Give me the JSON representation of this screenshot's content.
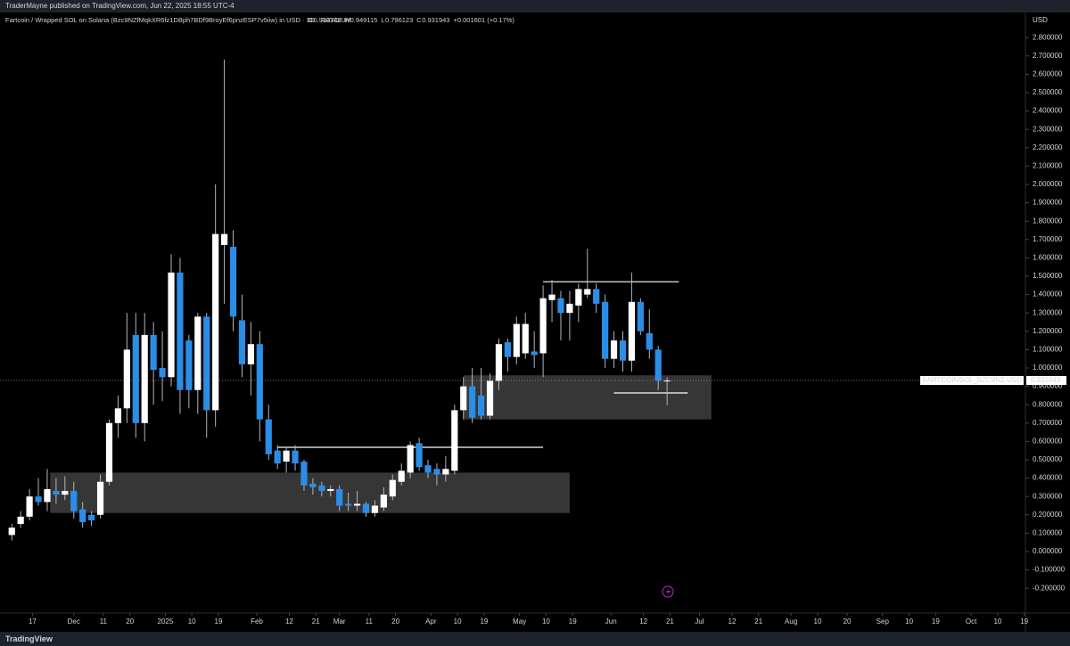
{
  "header": {
    "author_line": "TraderMayne published on TradingView.com, Jun 22, 2025 18:55 UTC-4"
  },
  "chart_data": {
    "type": "candlestick",
    "symbol_line": "Fartcoin / Wrapped SOL on Solana (Bzc9NZfMqkXR6fz1DBph7BDf9BroyEf6pnzESP7v5iiw) in USD · 3D · RAYDIUM",
    "ohlc_legend": [
      {
        "key": "O",
        "value": 0.930342
      },
      {
        "key": "H",
        "value": 0.949115
      },
      {
        "key": "L",
        "value": 0.796123
      },
      {
        "key": "C",
        "value": 0.931943
      }
    ],
    "change": "+0.001601 (+0.17%)",
    "currency": "USD",
    "up_color": "#ffffff",
    "down_color": "#2a8ee6",
    "wick_color": "#b2b5be",
    "x": [
      -21,
      -18,
      -15,
      -12,
      -9,
      -6,
      -3,
      0,
      3,
      6,
      9,
      12,
      15,
      18,
      21,
      24,
      27,
      30,
      33,
      36,
      39,
      42,
      45,
      48,
      51,
      54,
      57,
      60,
      63,
      66,
      69,
      72,
      75,
      78,
      81,
      84,
      87,
      90,
      93,
      96,
      99,
      102,
      105,
      108,
      111,
      114,
      117,
      120,
      123,
      126,
      129,
      132,
      135,
      138,
      141,
      144,
      147,
      150,
      153,
      156,
      159,
      162,
      165,
      168,
      171,
      174,
      177,
      180,
      183,
      186,
      189,
      192,
      195,
      198,
      201
    ],
    "open": [
      0.09,
      0.15,
      0.19,
      0.3,
      0.27,
      0.33,
      0.31,
      0.33,
      0.23,
      0.2,
      0.2,
      0.38,
      0.7,
      0.78,
      1.18,
      0.7,
      1.18,
      1.0,
      0.95,
      1.52,
      1.15,
      0.88,
      1.28,
      0.77,
      1.67,
      1.66,
      1.26,
      1.02,
      1.13,
      0.72,
      0.55,
      0.49,
      0.55,
      0.49,
      0.37,
      0.36,
      0.33,
      0.34,
      0.26,
      0.25,
      0.26,
      0.21,
      0.24,
      0.3,
      0.38,
      0.43,
      0.59,
      0.47,
      0.45,
      0.42,
      0.44,
      0.77,
      0.9,
      0.85,
      0.74,
      0.93,
      1.14,
      1.06,
      1.08,
      1.09,
      1.08,
      1.37,
      1.38,
      1.3,
      1.34,
      1.4,
      1.43,
      1.36,
      1.05,
      1.15,
      1.04,
      1.36,
      1.19,
      1.1,
      0.930342
    ],
    "high": [
      0.15,
      0.22,
      0.34,
      0.4,
      0.45,
      0.4,
      0.41,
      0.38,
      0.27,
      0.22,
      0.42,
      0.72,
      0.85,
      1.3,
      1.3,
      1.3,
      1.25,
      1.2,
      1.62,
      1.6,
      1.18,
      1.3,
      1.3,
      2.0,
      2.68,
      1.75,
      1.4,
      1.25,
      1.2,
      0.8,
      0.58,
      0.57,
      0.58,
      0.5,
      0.4,
      0.38,
      0.36,
      0.36,
      0.32,
      0.33,
      0.27,
      0.28,
      0.35,
      0.42,
      0.48,
      0.6,
      0.62,
      0.5,
      0.48,
      0.52,
      0.8,
      0.95,
      1.0,
      1.0,
      0.97,
      1.16,
      1.16,
      1.28,
      1.3,
      1.2,
      1.45,
      1.48,
      1.42,
      1.42,
      1.46,
      1.65,
      1.46,
      1.4,
      1.2,
      1.2,
      1.52,
      1.38,
      1.32,
      1.12,
      0.949115
    ],
    "low": [
      0.06,
      0.13,
      0.17,
      0.25,
      0.22,
      0.26,
      0.28,
      0.18,
      0.13,
      0.14,
      0.18,
      0.36,
      0.62,
      0.7,
      0.62,
      0.6,
      0.8,
      0.82,
      0.9,
      0.75,
      0.78,
      0.75,
      0.62,
      0.68,
      1.35,
      1.2,
      0.95,
      0.85,
      0.6,
      0.5,
      0.45,
      0.43,
      0.44,
      0.33,
      0.31,
      0.3,
      0.3,
      0.22,
      0.22,
      0.22,
      0.19,
      0.19,
      0.22,
      0.28,
      0.36,
      0.4,
      0.44,
      0.4,
      0.36,
      0.38,
      0.42,
      0.72,
      0.7,
      0.72,
      0.72,
      0.88,
      0.98,
      1.02,
      1.05,
      1.0,
      0.95,
      1.25,
      1.15,
      1.15,
      1.25,
      1.38,
      1.3,
      1.0,
      1.0,
      0.98,
      0.98,
      1.18,
      1.05,
      0.88,
      0.796123
    ],
    "close": [
      0.13,
      0.19,
      0.3,
      0.27,
      0.34,
      0.31,
      0.33,
      0.22,
      0.16,
      0.17,
      0.38,
      0.7,
      0.78,
      1.1,
      0.7,
      1.18,
      0.99,
      0.95,
      1.52,
      0.88,
      0.88,
      1.28,
      0.77,
      1.73,
      1.73,
      1.28,
      1.02,
      1.13,
      0.72,
      0.53,
      0.48,
      0.55,
      0.48,
      0.36,
      0.35,
      0.33,
      0.34,
      0.25,
      0.25,
      0.26,
      0.21,
      0.25,
      0.31,
      0.39,
      0.44,
      0.58,
      0.46,
      0.43,
      0.42,
      0.45,
      0.77,
      0.9,
      0.73,
      0.74,
      0.93,
      1.13,
      1.06,
      1.24,
      1.24,
      1.07,
      1.38,
      1.4,
      1.3,
      1.35,
      1.43,
      1.43,
      1.35,
      1.05,
      1.15,
      1.04,
      1.36,
      1.2,
      1.1,
      0.93,
      0.931943
    ],
    "xlim": [
      -25,
      323
    ],
    "xticks": [
      {
        "value": -14,
        "label": "17"
      },
      {
        "value": 0,
        "label": "Dec"
      },
      {
        "value": 10,
        "label": "11"
      },
      {
        "value": 19,
        "label": "20"
      },
      {
        "value": 31,
        "label": "2025"
      },
      {
        "value": 40,
        "label": "10"
      },
      {
        "value": 49,
        "label": "19"
      },
      {
        "value": 62,
        "label": "Feb"
      },
      {
        "value": 73,
        "label": "12"
      },
      {
        "value": 82,
        "label": "21"
      },
      {
        "value": 90,
        "label": "Mar"
      },
      {
        "value": 100,
        "label": "11"
      },
      {
        "value": 109,
        "label": "20"
      },
      {
        "value": 121,
        "label": "Apr"
      },
      {
        "value": 130,
        "label": "10"
      },
      {
        "value": 139,
        "label": "19"
      },
      {
        "value": 151,
        "label": "May"
      },
      {
        "value": 160,
        "label": "10"
      },
      {
        "value": 169,
        "label": "19"
      },
      {
        "value": 182,
        "label": "Jun"
      },
      {
        "value": 193,
        "label": "12"
      },
      {
        "value": 202,
        "label": "21"
      },
      {
        "value": 212,
        "label": "Jul"
      },
      {
        "value": 223,
        "label": "12"
      },
      {
        "value": 232,
        "label": "21"
      },
      {
        "value": 243,
        "label": "Aug"
      },
      {
        "value": 252,
        "label": "10"
      },
      {
        "value": 262,
        "label": "20"
      },
      {
        "value": 274,
        "label": "Sep"
      },
      {
        "value": 283,
        "label": "10"
      },
      {
        "value": 292,
        "label": "19"
      },
      {
        "value": 304,
        "label": "Oct"
      },
      {
        "value": 313,
        "label": "10"
      },
      {
        "value": 322,
        "label": "19"
      }
    ],
    "ylim": [
      -0.335,
      2.932
    ],
    "yticks": [
      {
        "value": 2.8,
        "label": "2.800000"
      },
      {
        "value": 2.7,
        "label": "2.700000"
      },
      {
        "value": 2.6,
        "label": "2.600000"
      },
      {
        "value": 2.5,
        "label": "2.500000"
      },
      {
        "value": 2.4,
        "label": "2.400000"
      },
      {
        "value": 2.3,
        "label": "2.300000"
      },
      {
        "value": 2.2,
        "label": "2.200000"
      },
      {
        "value": 2.1,
        "label": "2.100000"
      },
      {
        "value": 2.0,
        "label": "2.000000"
      },
      {
        "value": 1.9,
        "label": "1.900000"
      },
      {
        "value": 1.8,
        "label": "1.800000"
      },
      {
        "value": 1.7,
        "label": "1.700000"
      },
      {
        "value": 1.6,
        "label": "1.600000"
      },
      {
        "value": 1.5,
        "label": "1.500000"
      },
      {
        "value": 1.4,
        "label": "1.400000"
      },
      {
        "value": 1.3,
        "label": "1.300000"
      },
      {
        "value": 1.2,
        "label": "1.200000"
      },
      {
        "value": 1.1,
        "label": "1.100000"
      },
      {
        "value": 1.0,
        "label": "1.000000"
      },
      {
        "value": 0.9,
        "label": "0.900000"
      },
      {
        "value": 0.8,
        "label": "0.800000"
      },
      {
        "value": 0.7,
        "label": "0.700000"
      },
      {
        "value": 0.6,
        "label": "0.600000"
      },
      {
        "value": 0.5,
        "label": "0.500000"
      },
      {
        "value": 0.4,
        "label": "0.400000"
      },
      {
        "value": 0.3,
        "label": "0.300000"
      },
      {
        "value": 0.2,
        "label": "0.200000"
      },
      {
        "value": 0.1,
        "label": "0.100000"
      },
      {
        "value": 0,
        "label": "0.000000"
      },
      {
        "value": -0.1,
        "label": "-0.100000"
      },
      {
        "value": -0.2,
        "label": "-0.200000"
      }
    ],
    "zones": [
      {
        "x": [
          -8,
          168
        ],
        "y": [
          0.21,
          0.43
        ]
      },
      {
        "x": [
          132,
          216
        ],
        "y": [
          0.72,
          0.96
        ]
      }
    ],
    "levels": [
      {
        "x": [
          69,
          159
        ],
        "y": 0.568
      },
      {
        "x": [
          159,
          205
        ],
        "y": 1.47
      },
      {
        "x": [
          183,
          208
        ],
        "y": 0.864
      }
    ],
    "last_price": {
      "symbol": "FARTCOINSOL_BZC9NZ.USD",
      "value": 0.931943
    }
  },
  "footer": {
    "brand": "TradingView"
  }
}
